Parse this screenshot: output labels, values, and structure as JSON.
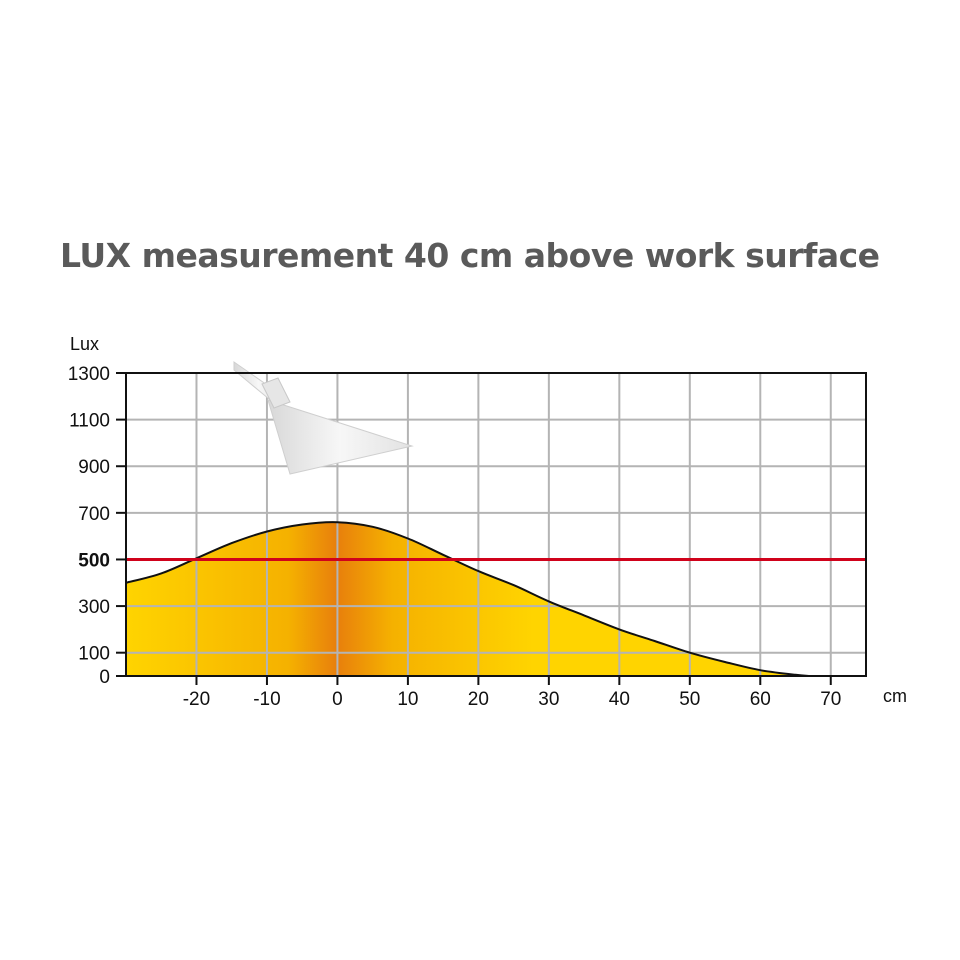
{
  "chart_data": {
    "type": "area",
    "title": "LUX measurement 40 cm above work surface",
    "ylabel": "Lux",
    "xlabel": "cm",
    "xlim": [
      -30,
      75
    ],
    "ylim": [
      0,
      1300
    ],
    "x_ticks": [
      -20,
      -10,
      0,
      10,
      20,
      30,
      40,
      50,
      60,
      70
    ],
    "y_ticks": [
      0,
      100,
      300,
      500,
      700,
      900,
      1100,
      1300
    ],
    "highlight_tick": 500,
    "grid": true,
    "series": [
      {
        "x": [
          -30,
          -25,
          -20,
          -15,
          -10,
          -5,
          0,
          5,
          10,
          15,
          20,
          25,
          30,
          35,
          40,
          45,
          50,
          55,
          60,
          65,
          67
        ],
        "values": [
          400,
          440,
          505,
          570,
          620,
          650,
          660,
          640,
          590,
          520,
          450,
          390,
          320,
          260,
          200,
          150,
          100,
          60,
          25,
          5,
          0
        ]
      }
    ],
    "reference_line": {
      "y": 500
    }
  },
  "colors": {
    "title": "#5a5a5a",
    "reference_line": "#d0021b",
    "highlight_tick": "#c8102e",
    "grid": "#b4b4b4",
    "fill_edge": "#ffd400",
    "fill_peak": "#e87f0c",
    "curve": "#111111"
  },
  "decoration": {
    "icon": "lamp-icon"
  }
}
